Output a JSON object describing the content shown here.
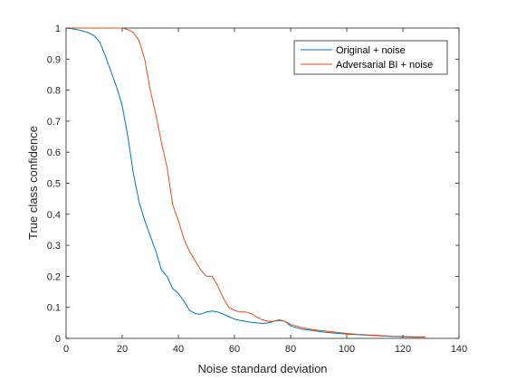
{
  "chart_data": {
    "type": "line",
    "title": "",
    "xlabel": "Noise standard deviation",
    "ylabel": "True class confidence",
    "xlim": [
      0,
      140
    ],
    "ylim": [
      0,
      1
    ],
    "xticks": [
      0,
      20,
      40,
      60,
      80,
      100,
      120,
      140
    ],
    "yticks": [
      0,
      0.1,
      0.2,
      0.3,
      0.4,
      0.5,
      0.6,
      0.7,
      0.8,
      0.9,
      1
    ],
    "xtick_labels": [
      "0",
      "20",
      "40",
      "60",
      "80",
      "100",
      "120",
      "140"
    ],
    "ytick_labels": [
      "0",
      "0.1",
      "0.2",
      "0.3",
      "0.4",
      "0.5",
      "0.6",
      "0.7",
      "0.8",
      "0.9",
      "1"
    ],
    "grid": false,
    "legend_position": "top-right",
    "series": [
      {
        "name": "Original + noise",
        "color": "#0072BD",
        "x": [
          0,
          2,
          4,
          6,
          8,
          10,
          12,
          14,
          16,
          18,
          20,
          22,
          24,
          26,
          28,
          30,
          32,
          34,
          36,
          38,
          40,
          42,
          44,
          46,
          48,
          50,
          52,
          54,
          56,
          58,
          60,
          62,
          64,
          66,
          68,
          70,
          72,
          74,
          76,
          78,
          80,
          84,
          88,
          92,
          96,
          100,
          104,
          108,
          112,
          116,
          120,
          124,
          128
        ],
        "y": [
          1.0,
          0.998,
          0.995,
          0.99,
          0.985,
          0.975,
          0.955,
          0.91,
          0.86,
          0.81,
          0.75,
          0.65,
          0.53,
          0.44,
          0.38,
          0.33,
          0.28,
          0.22,
          0.2,
          0.16,
          0.145,
          0.12,
          0.09,
          0.08,
          0.078,
          0.085,
          0.088,
          0.085,
          0.078,
          0.07,
          0.062,
          0.058,
          0.055,
          0.052,
          0.05,
          0.048,
          0.05,
          0.055,
          0.058,
          0.055,
          0.04,
          0.03,
          0.025,
          0.02,
          0.017,
          0.014,
          0.012,
          0.01,
          0.008,
          0.006,
          0.005,
          0.004,
          0.004
        ]
      },
      {
        "name": "Adversarial BI + noise",
        "color": "#D95319",
        "x": [
          0,
          2,
          4,
          6,
          8,
          10,
          12,
          14,
          16,
          18,
          20,
          22,
          24,
          26,
          28,
          30,
          32,
          34,
          36,
          38,
          40,
          42,
          44,
          46,
          48,
          50,
          52,
          54,
          56,
          58,
          60,
          62,
          64,
          66,
          68,
          70,
          72,
          74,
          76,
          78,
          80,
          84,
          88,
          92,
          96,
          100,
          104,
          108,
          112,
          116,
          120,
          124,
          128
        ],
        "y": [
          1.0,
          1.0,
          1.0,
          1.0,
          1.0,
          1.0,
          1.0,
          1.0,
          1.0,
          1.0,
          1.0,
          0.995,
          0.985,
          0.96,
          0.9,
          0.8,
          0.72,
          0.63,
          0.55,
          0.43,
          0.38,
          0.32,
          0.28,
          0.25,
          0.22,
          0.2,
          0.2,
          0.17,
          0.13,
          0.1,
          0.09,
          0.085,
          0.085,
          0.08,
          0.068,
          0.06,
          0.055,
          0.055,
          0.06,
          0.055,
          0.045,
          0.035,
          0.028,
          0.024,
          0.02,
          0.016,
          0.013,
          0.011,
          0.009,
          0.007,
          0.006,
          0.005,
          0.005
        ]
      }
    ]
  }
}
